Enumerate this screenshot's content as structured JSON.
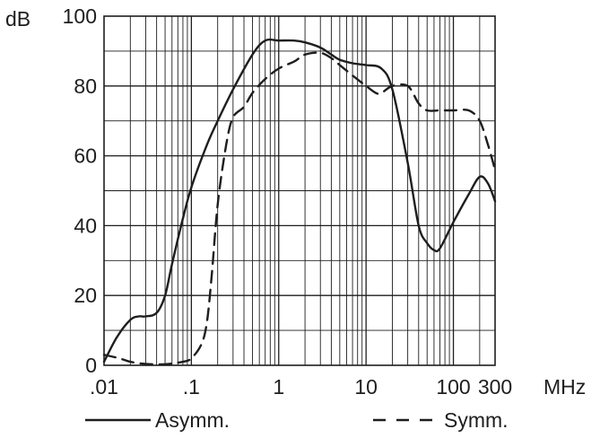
{
  "chart_data": {
    "type": "line",
    "title": "",
    "xlabel": "",
    "ylabel": "",
    "x_scale": "log",
    "x_ticks": [
      {
        "value": 0.01,
        "label": ".01"
      },
      {
        "value": 0.1,
        "label": ".1"
      },
      {
        "value": 1,
        "label": "1"
      },
      {
        "value": 10,
        "label": "10"
      },
      {
        "value": 100,
        "label": "100"
      },
      {
        "value": 300,
        "label": "300"
      }
    ],
    "x_unit": "MHz",
    "y_ticks": [
      {
        "value": 0,
        "label": "0"
      },
      {
        "value": 20,
        "label": "20"
      },
      {
        "value": 40,
        "label": "40"
      },
      {
        "value": 60,
        "label": "60"
      },
      {
        "value": 80,
        "label": "80"
      },
      {
        "value": 100,
        "label": "100"
      }
    ],
    "y_unit": "dB",
    "xlim": [
      0.01,
      300
    ],
    "ylim": [
      0,
      100
    ],
    "grid": true,
    "legend_position": "bottom",
    "series": [
      {
        "name": "Asymm.",
        "style": "solid",
        "color": "#1e1e1e",
        "points": [
          [
            0.01,
            1
          ],
          [
            0.014,
            8
          ],
          [
            0.02,
            13
          ],
          [
            0.025,
            14
          ],
          [
            0.03,
            14
          ],
          [
            0.04,
            15
          ],
          [
            0.05,
            20
          ],
          [
            0.06,
            29
          ],
          [
            0.08,
            42
          ],
          [
            0.1,
            51
          ],
          [
            0.15,
            63
          ],
          [
            0.2,
            70
          ],
          [
            0.3,
            79
          ],
          [
            0.5,
            89
          ],
          [
            0.7,
            93
          ],
          [
            1,
            93
          ],
          [
            1.5,
            93
          ],
          [
            2,
            92.5
          ],
          [
            3,
            91
          ],
          [
            4,
            89
          ],
          [
            5,
            87.5
          ],
          [
            7,
            86.5
          ],
          [
            10,
            86
          ],
          [
            15,
            85
          ],
          [
            20,
            79
          ],
          [
            30,
            58
          ],
          [
            40,
            40
          ],
          [
            50,
            35
          ],
          [
            60,
            33
          ],
          [
            70,
            33.5
          ],
          [
            100,
            41
          ],
          [
            150,
            49
          ],
          [
            200,
            54
          ],
          [
            250,
            52
          ],
          [
            300,
            47
          ]
        ]
      },
      {
        "name": "Symm.",
        "style": "dashed",
        "color": "#1e1e1e",
        "points": [
          [
            0.01,
            3
          ],
          [
            0.015,
            2
          ],
          [
            0.02,
            1
          ],
          [
            0.03,
            0.4
          ],
          [
            0.05,
            0.3
          ],
          [
            0.08,
            1
          ],
          [
            0.1,
            2
          ],
          [
            0.13,
            6
          ],
          [
            0.15,
            12
          ],
          [
            0.17,
            25
          ],
          [
            0.2,
            46
          ],
          [
            0.25,
            63
          ],
          [
            0.3,
            71
          ],
          [
            0.4,
            74
          ],
          [
            0.5,
            78
          ],
          [
            0.7,
            82
          ],
          [
            1,
            85
          ],
          [
            1.5,
            87
          ],
          [
            2,
            89
          ],
          [
            3,
            89.5
          ],
          [
            4,
            88
          ],
          [
            5,
            86
          ],
          [
            7,
            83
          ],
          [
            10,
            80
          ],
          [
            13,
            78
          ],
          [
            15,
            78
          ],
          [
            20,
            80
          ],
          [
            30,
            80
          ],
          [
            40,
            75
          ],
          [
            50,
            73
          ],
          [
            70,
            73
          ],
          [
            100,
            73
          ],
          [
            150,
            73
          ],
          [
            200,
            70
          ],
          [
            250,
            63
          ],
          [
            300,
            56
          ]
        ]
      }
    ]
  }
}
